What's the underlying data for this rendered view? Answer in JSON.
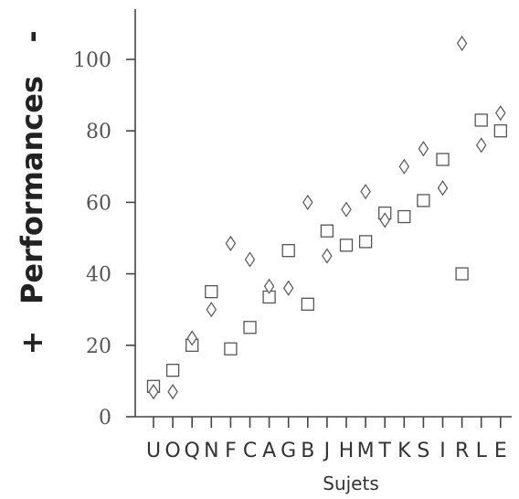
{
  "chart_data": {
    "type": "scatter",
    "title": "",
    "xlabel": "Sujets",
    "ylabel": "Performances",
    "ylabel_top_sign": "-",
    "ylabel_bottom_sign": "+",
    "ylim": [
      0,
      110
    ],
    "yticks": [
      0,
      20,
      40,
      60,
      80,
      100
    ],
    "grid": false,
    "categories": [
      "U",
      "O",
      "Q",
      "N",
      "F",
      "C",
      "A",
      "G",
      "B",
      "J",
      "H",
      "M",
      "T",
      "K",
      "S",
      "I",
      "R",
      "L",
      "E"
    ],
    "series": [
      {
        "marker": "square",
        "values": [
          8.5,
          13,
          20,
          35,
          19,
          25,
          33.5,
          46.5,
          31.5,
          52,
          48,
          49,
          57,
          56,
          60.5,
          72,
          40,
          83,
          80
        ]
      },
      {
        "marker": "diamond",
        "values": [
          7,
          7,
          22,
          30,
          48.5,
          44,
          36.5,
          36,
          60,
          45,
          58,
          63,
          55,
          70,
          75,
          64,
          104.5,
          76,
          85
        ]
      }
    ]
  }
}
